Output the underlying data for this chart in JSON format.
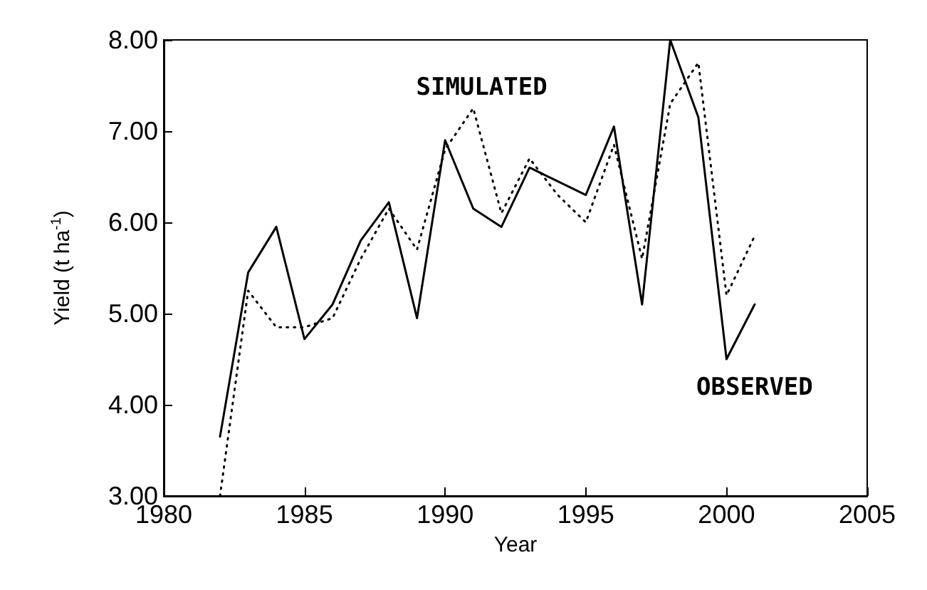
{
  "chart_data": {
    "type": "line",
    "xlabel": "Year",
    "ylabel": "Yield (t ha$^{-1}$)",
    "x": [
      1982,
      1983,
      1984,
      1985,
      1986,
      1987,
      1988,
      1989,
      1990,
      1991,
      1992,
      1993,
      1994,
      1995,
      1996,
      1997,
      1998,
      1999,
      2000,
      2001
    ],
    "series": [
      {
        "name": "OBSERVED",
        "color": "#000000",
        "line_style": "solid",
        "values": [
          3.65,
          5.45,
          5.95,
          4.72,
          5.1,
          5.8,
          6.22,
          4.95,
          6.9,
          6.15,
          5.95,
          6.6,
          6.45,
          6.3,
          7.05,
          5.1,
          8.0,
          7.15,
          4.5,
          5.1
        ]
      },
      {
        "name": "SIMULATED",
        "color": "#000000",
        "line_style": "dotted",
        "values": [
          3.0,
          5.25,
          4.85,
          4.85,
          4.95,
          5.6,
          6.15,
          5.7,
          6.8,
          7.25,
          6.1,
          6.7,
          6.3,
          6.0,
          6.85,
          5.6,
          7.3,
          7.75,
          5.2,
          5.85
        ]
      }
    ],
    "xlim": [
      1980,
      2005
    ],
    "xticks": [
      1980,
      1985,
      1990,
      1995,
      2000,
      2005
    ],
    "ylim": [
      3,
      8
    ],
    "yticks": [
      {
        "value": 3,
        "label": "3.00"
      },
      {
        "value": 4,
        "label": "4.00"
      },
      {
        "value": 5,
        "label": "5.00"
      },
      {
        "value": 6,
        "label": "6.00"
      },
      {
        "value": 7,
        "label": "7.00"
      },
      {
        "value": 8,
        "label": "8.00"
      }
    ],
    "grid": false,
    "legend": false,
    "marker": "none"
  }
}
